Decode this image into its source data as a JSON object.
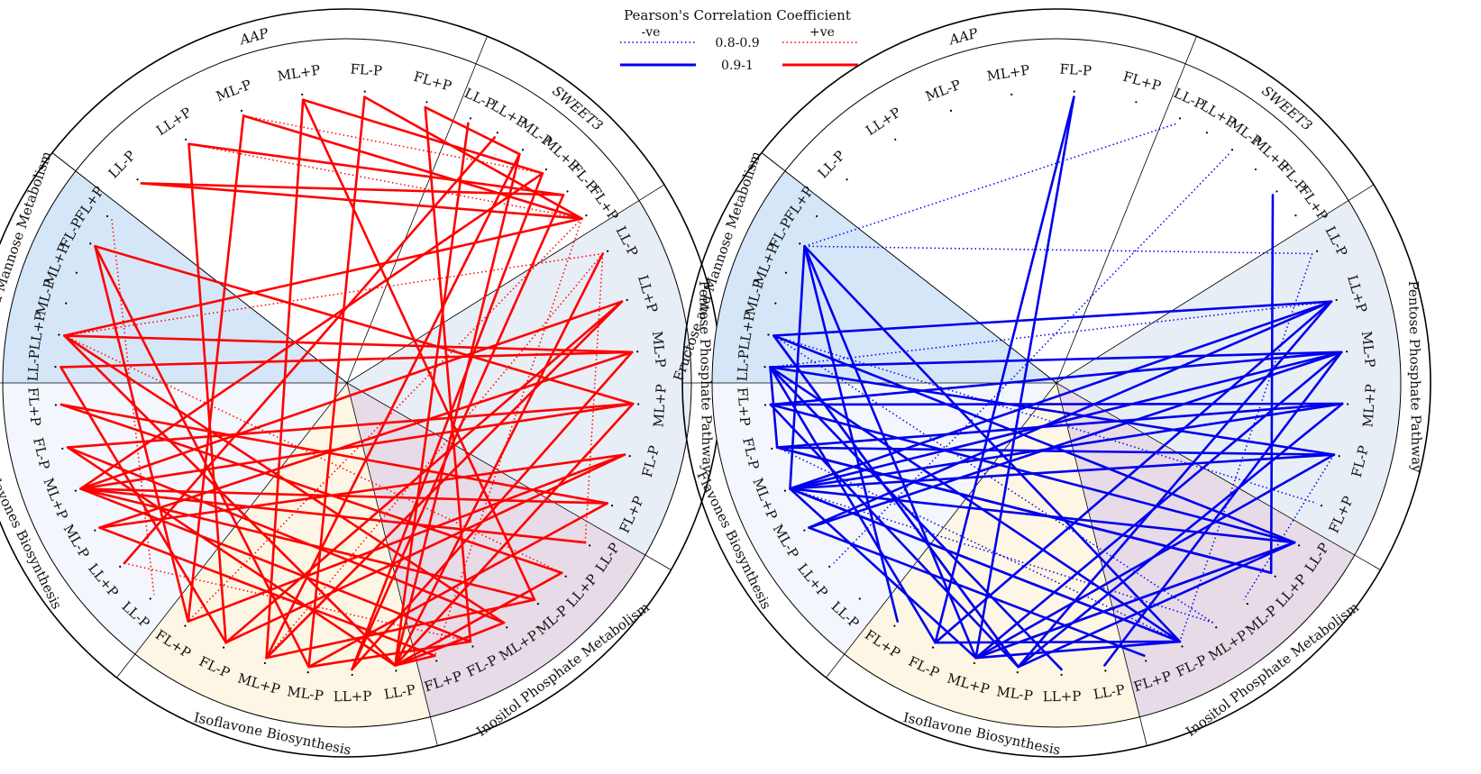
{
  "legend": {
    "title": "Pearson's Correlation Coefficient",
    "negative_label": "-ve",
    "positive_label": "+ve",
    "range_dotted": "0.8-0.9",
    "range_solid": "0.9-1",
    "negative_color": "#0000ee",
    "positive_color": "#ff0000"
  },
  "sample_labels": [
    "LL-P",
    "LL+P",
    "ML-P",
    "ML+P",
    "FL-P",
    "FL+P"
  ],
  "groups": [
    {
      "id": "aap",
      "label": "AAP",
      "italic": true,
      "fill": "#ffffff"
    },
    {
      "id": "sweet3",
      "label": "SWEET3",
      "italic": true,
      "fill": "#ffffff"
    },
    {
      "id": "pentose",
      "label": "Pentose Phosphate Pathway",
      "italic": false,
      "fill": "#e8eef5"
    },
    {
      "id": "inositol",
      "label": "Inositol Phosphate Metabolism",
      "italic": false,
      "fill": "#e7dbe7"
    },
    {
      "id": "isoflavone",
      "label": "Isoflavone Biosynthesis",
      "italic": false,
      "fill": "#fdf6e4"
    },
    {
      "id": "flavone",
      "label": "Flavones Biosynthesis",
      "italic": false,
      "fill": "#f3f6fc"
    },
    {
      "id": "fructose",
      "label": "Fructose and Mannose Metabolism",
      "italic": false,
      "fill": "#d5e6f8"
    }
  ],
  "panels": [
    {
      "id": "positive",
      "color": "#ff0000",
      "solid": [
        [
          "aap.0",
          "sweet3.4"
        ],
        [
          "aap.0",
          "sweet3.5"
        ],
        [
          "aap.1",
          "sweet3.4"
        ],
        [
          "aap.1",
          "isoflavone.4"
        ],
        [
          "aap.2",
          "sweet3.5"
        ],
        [
          "aap.2",
          "isoflavone.5"
        ],
        [
          "aap.3",
          "sweet3.3"
        ],
        [
          "aap.3",
          "inositol.2"
        ],
        [
          "aap.4",
          "sweet3.5"
        ],
        [
          "aap.4",
          "isoflavone.2"
        ],
        [
          "aap.5",
          "sweet3.2"
        ],
        [
          "aap.5",
          "inositol.4"
        ],
        [
          "sweet3.0",
          "isoflavone.0"
        ],
        [
          "sweet3.1",
          "flavone.1"
        ],
        [
          "sweet3.2",
          "isoflavone.3"
        ],
        [
          "sweet3.3",
          "flavone.3"
        ],
        [
          "sweet3.4",
          "isoflavone.1"
        ],
        [
          "sweet3.5",
          "fructose.1"
        ],
        [
          "fructose.1",
          "isoflavone.0"
        ],
        [
          "fructose.1",
          "inositol.3"
        ],
        [
          "fructose.1",
          "pentose.2"
        ],
        [
          "fructose.4",
          "isoflavone.2"
        ],
        [
          "fructose.4",
          "pentose.3"
        ],
        [
          "fructose.0",
          "pentose.2"
        ],
        [
          "fructose.0",
          "isoflavone.4"
        ],
        [
          "pentose.1",
          "flavone.3"
        ],
        [
          "pentose.1",
          "isoflavone.3"
        ],
        [
          "pentose.2",
          "flavone.2"
        ],
        [
          "pentose.2",
          "isoflavone.1"
        ],
        [
          "pentose.3",
          "flavone.3"
        ],
        [
          "pentose.3",
          "isoflavone.0"
        ],
        [
          "pentose.3",
          "flavone.4"
        ],
        [
          "pentose.4",
          "isoflavone.5"
        ],
        [
          "pentose.4",
          "flavone.2"
        ],
        [
          "pentose.5",
          "isoflavone.2"
        ],
        [
          "pentose.5",
          "flavone.3"
        ],
        [
          "pentose.4",
          "isoflavone.4"
        ],
        [
          "pentose.5",
          "flavone.5"
        ],
        [
          "flavone.3",
          "inositol.0"
        ],
        [
          "flavone.3",
          "inositol.2"
        ],
        [
          "flavone.3",
          "inositol.4"
        ],
        [
          "flavone.2",
          "inositol.5"
        ],
        [
          "flavone.5",
          "inositol.1"
        ],
        [
          "flavone.4",
          "inositol.3"
        ],
        [
          "isoflavone.0",
          "inositol.5"
        ],
        [
          "isoflavone.0",
          "inositol.3"
        ],
        [
          "isoflavone.0",
          "pentose.0"
        ],
        [
          "isoflavone.0",
          "sweet3.2"
        ],
        [
          "isoflavone.0",
          "inositol.1"
        ],
        [
          "isoflavone.0",
          "flavone.4"
        ],
        [
          "isoflavone.2",
          "inositol.4"
        ],
        [
          "isoflavone.3",
          "inositol.2"
        ],
        [
          "isoflavone.4",
          "pentose.1"
        ],
        [
          "isoflavone.5",
          "fructose.4"
        ],
        [
          "isoflavone.1",
          "sweet3.3"
        ],
        [
          "isoflavone.3",
          "aap.3"
        ]
      ],
      "dotted": [
        [
          "fructose.1",
          "pentose.0"
        ],
        [
          "fructose.1",
          "inositol.1"
        ],
        [
          "sweet3.5",
          "inositol.5"
        ],
        [
          "sweet3.5",
          "isoflavone.5"
        ],
        [
          "aap.2",
          "sweet3.3"
        ],
        [
          "aap.0",
          "sweet3.5"
        ],
        [
          "pentose.0",
          "inositol.0"
        ],
        [
          "flavone.1",
          "inositol.4"
        ],
        [
          "fructose.5",
          "flavone.0"
        ],
        [
          "pentose.0",
          "isoflavone.3"
        ],
        [
          "aap.1",
          "sweet3.5"
        ]
      ]
    },
    {
      "id": "negative",
      "color": "#0000ee",
      "solid": [
        [
          "aap.4",
          "isoflavone.4"
        ],
        [
          "sweet3.4",
          "inositol.1"
        ],
        [
          "fructose.4",
          "flavone.3"
        ],
        [
          "fructose.4",
          "isoflavone.3"
        ],
        [
          "fructose.4",
          "inositol.4"
        ],
        [
          "fructose.4",
          "isoflavone.5"
        ],
        [
          "fructose.1",
          "pentose.1"
        ],
        [
          "fructose.1",
          "inositol.0"
        ],
        [
          "fructose.1",
          "isoflavone.2"
        ],
        [
          "fructose.0",
          "pentose.2"
        ],
        [
          "fructose.0",
          "inositol.4"
        ],
        [
          "fructose.0",
          "isoflavone.1"
        ],
        [
          "fructose.0",
          "pentose.4"
        ],
        [
          "fructose.0",
          "isoflavone.4"
        ],
        [
          "flavone.3",
          "pentose.1"
        ],
        [
          "flavone.3",
          "pentose.3"
        ],
        [
          "flavone.3",
          "inositol.0"
        ],
        [
          "flavone.3",
          "inositol.4"
        ],
        [
          "flavone.3",
          "pentose.4"
        ],
        [
          "flavone.2",
          "pentose.2"
        ],
        [
          "flavone.2",
          "inositol.5"
        ],
        [
          "flavone.4",
          "pentose.3"
        ],
        [
          "flavone.4",
          "inositol.1"
        ],
        [
          "flavone.5",
          "pentose.2"
        ],
        [
          "flavone.5",
          "isoflavone.2"
        ],
        [
          "flavone.3",
          "isoflavone.3"
        ],
        [
          "pentose.1",
          "isoflavone.2"
        ],
        [
          "pentose.1",
          "isoflavone.4"
        ],
        [
          "pentose.2",
          "isoflavone.3"
        ],
        [
          "pentose.2",
          "isoflavone.0"
        ],
        [
          "pentose.3",
          "isoflavone.2"
        ],
        [
          "pentose.3",
          "flavone.5"
        ],
        [
          "pentose.4",
          "isoflavone.3"
        ],
        [
          "pentose.4",
          "flavone.4"
        ],
        [
          "pentose.2",
          "flavone.3"
        ],
        [
          "pentose.1",
          "flavone.2"
        ],
        [
          "inositol.0",
          "isoflavone.2"
        ],
        [
          "inositol.0",
          "isoflavone.3"
        ],
        [
          "inositol.0",
          "flavone.5"
        ],
        [
          "inositol.1",
          "flavone.4"
        ],
        [
          "inositol.4",
          "isoflavone.3"
        ],
        [
          "inositol.4",
          "flavone.3"
        ],
        [
          "isoflavone.2",
          "fructose.1"
        ],
        [
          "isoflavone.3",
          "inositol.0"
        ],
        [
          "isoflavone.4",
          "inositol.4"
        ],
        [
          "fructose.0",
          "flavone.4"
        ],
        [
          "aap.4",
          "isoflavone.3"
        ]
      ],
      "dotted": [
        [
          "fructose.4",
          "pentose.0"
        ],
        [
          "fructose.4",
          "sweet3.0"
        ],
        [
          "fructose.1",
          "pentose.5"
        ],
        [
          "fructose.0",
          "pentose.1"
        ],
        [
          "sweet3.2",
          "flavone.1"
        ],
        [
          "flavone.3",
          "inositol.3"
        ],
        [
          "flavone.4",
          "inositol.4"
        ],
        [
          "pentose.0",
          "inositol.4"
        ],
        [
          "pentose.4",
          "inositol.2"
        ],
        [
          "fructose.1",
          "inositol.3"
        ]
      ]
    }
  ]
}
